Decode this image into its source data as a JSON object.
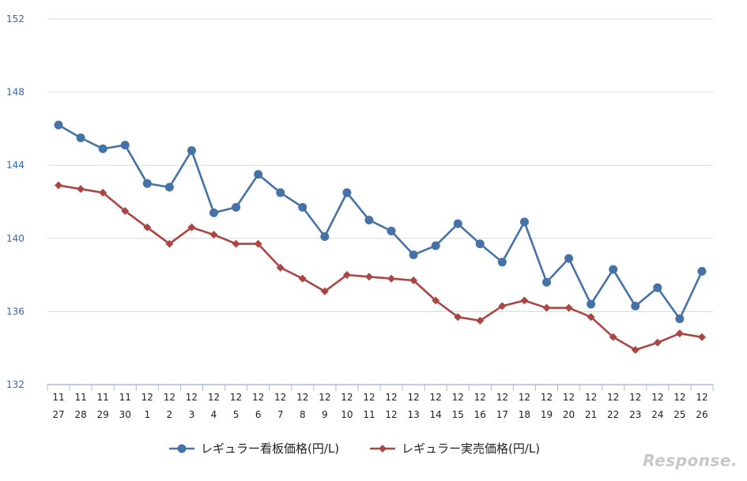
{
  "chart_data": {
    "type": "line",
    "ylim": [
      132,
      152
    ],
    "yticks": [
      132,
      136,
      140,
      144,
      148,
      152
    ],
    "grid": "horizontal",
    "legend_placement": "bottom",
    "categories": [
      [
        "11",
        "27"
      ],
      [
        "11",
        "28"
      ],
      [
        "11",
        "29"
      ],
      [
        "11",
        "30"
      ],
      [
        "12",
        "1"
      ],
      [
        "12",
        "2"
      ],
      [
        "12",
        "3"
      ],
      [
        "12",
        "4"
      ],
      [
        "12",
        "5"
      ],
      [
        "12",
        "6"
      ],
      [
        "12",
        "7"
      ],
      [
        "12",
        "8"
      ],
      [
        "12",
        "9"
      ],
      [
        "12",
        "10"
      ],
      [
        "12",
        "11"
      ],
      [
        "12",
        "12"
      ],
      [
        "12",
        "13"
      ],
      [
        "12",
        "14"
      ],
      [
        "12",
        "15"
      ],
      [
        "12",
        "16"
      ],
      [
        "12",
        "17"
      ],
      [
        "12",
        "18"
      ],
      [
        "12",
        "19"
      ],
      [
        "12",
        "20"
      ],
      [
        "12",
        "21"
      ],
      [
        "12",
        "22"
      ],
      [
        "12",
        "23"
      ],
      [
        "12",
        "24"
      ],
      [
        "12",
        "25"
      ],
      [
        "12",
        "26"
      ]
    ],
    "series": [
      {
        "name": "レギュラー看板価格(円/L)",
        "color": "#4572a7",
        "marker": "circle",
        "values": [
          146.2,
          145.5,
          144.9,
          145.1,
          143.0,
          142.8,
          144.8,
          141.4,
          141.7,
          143.5,
          142.5,
          141.7,
          140.1,
          142.5,
          141.0,
          140.4,
          139.1,
          139.6,
          140.8,
          139.7,
          138.7,
          140.9,
          137.6,
          138.9,
          136.4,
          138.3,
          136.3,
          137.3,
          135.6,
          138.2
        ]
      },
      {
        "name": "レギュラー実売価格(円/L)",
        "color": "#aa4643",
        "marker": "diamond",
        "values": [
          142.9,
          142.7,
          142.5,
          141.5,
          140.6,
          139.7,
          140.6,
          140.2,
          139.7,
          139.7,
          138.4,
          137.8,
          137.1,
          138.0,
          137.9,
          137.8,
          137.7,
          136.6,
          135.7,
          135.5,
          136.3,
          136.6,
          136.2,
          136.2,
          135.7,
          134.6,
          133.9,
          134.3,
          134.8,
          134.6
        ]
      }
    ]
  },
  "watermark": "Response."
}
